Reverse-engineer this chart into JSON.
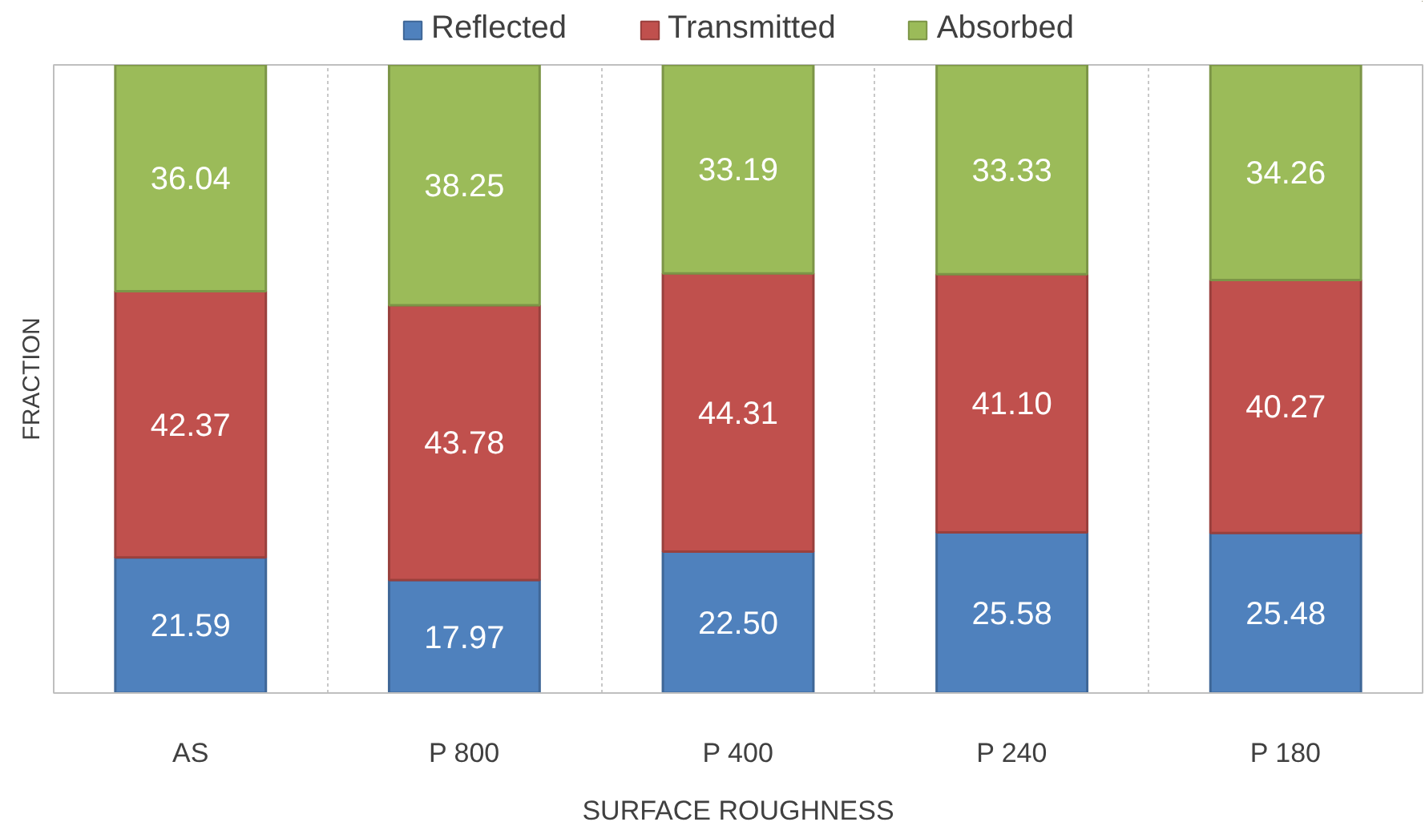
{
  "chart_data": {
    "type": "bar",
    "stacked": true,
    "categories": [
      "AS",
      "P 800",
      "P 400",
      "P 240",
      "P 180"
    ],
    "series": [
      {
        "name": "Reflected",
        "color": "#4f81bd",
        "values": [
          21.59,
          17.97,
          22.5,
          25.58,
          25.48
        ],
        "value_labels": [
          "21.59",
          "17.97",
          "22.50",
          "25.58",
          "25.48"
        ]
      },
      {
        "name": "Transmitted",
        "color": "#c0504d",
        "values": [
          42.37,
          43.78,
          44.31,
          41.1,
          40.27
        ],
        "value_labels": [
          "42.37",
          "43.78",
          "44.31",
          "41.10",
          "40.27"
        ]
      },
      {
        "name": "Absorbed",
        "color": "#9bbb59",
        "values": [
          36.04,
          38.25,
          33.19,
          33.33,
          34.26
        ],
        "value_labels": [
          "36.04",
          "38.25",
          "33.19",
          "33.33",
          "34.26"
        ]
      }
    ],
    "xlabel": "SURFACE ROUGHNESS",
    "ylabel": "FRACTION",
    "ylim": [
      0,
      100
    ],
    "grid": "x",
    "legend": "top",
    "tick_labels": "x"
  }
}
